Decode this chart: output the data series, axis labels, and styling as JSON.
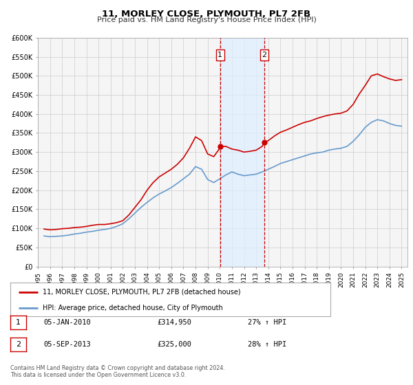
{
  "title": "11, MORLEY CLOSE, PLYMOUTH, PL7 2FB",
  "subtitle": "Price paid vs. HM Land Registry's House Price Index (HPI)",
  "ylim": [
    0,
    600000
  ],
  "yticks": [
    0,
    50000,
    100000,
    150000,
    200000,
    250000,
    300000,
    350000,
    400000,
    450000,
    500000,
    550000,
    600000
  ],
  "ytick_labels": [
    "£0",
    "£50K",
    "£100K",
    "£150K",
    "£200K",
    "£250K",
    "£300K",
    "£350K",
    "£400K",
    "£450K",
    "£500K",
    "£550K",
    "£600K"
  ],
  "xlim_start": 1995.0,
  "xlim_end": 2025.5,
  "red_line_color": "#cc0000",
  "blue_line_color": "#6699cc",
  "transaction1": {
    "label": "1",
    "date": 2010.03,
    "price": 314950,
    "pct": "27%",
    "date_str": "05-JAN-2010",
    "price_str": "£314,950"
  },
  "transaction2": {
    "label": "2",
    "date": 2013.67,
    "price": 325000,
    "pct": "28%",
    "date_str": "05-SEP-2013",
    "price_str": "£325,000"
  },
  "legend_line1": "11, MORLEY CLOSE, PLYMOUTH, PL7 2FB (detached house)",
  "legend_line2": "HPI: Average price, detached house, City of Plymouth",
  "footer1": "Contains HM Land Registry data © Crown copyright and database right 2024.",
  "footer2": "This data is licensed under the Open Government Licence v3.0.",
  "background_color": "#ffffff",
  "plot_bg_color": "#f5f5f5",
  "grid_color": "#cccccc",
  "span_color": "#ddeeff",
  "hpi_red_data": [
    [
      1995.5,
      98000
    ],
    [
      1996.0,
      96000
    ],
    [
      1996.5,
      97000
    ],
    [
      1997.0,
      99000
    ],
    [
      1997.5,
      100000
    ],
    [
      1998.0,
      102000
    ],
    [
      1998.5,
      103000
    ],
    [
      1999.0,
      105000
    ],
    [
      1999.5,
      108000
    ],
    [
      2000.0,
      110000
    ],
    [
      2000.5,
      110000
    ],
    [
      2001.0,
      112000
    ],
    [
      2001.5,
      115000
    ],
    [
      2002.0,
      120000
    ],
    [
      2002.5,
      135000
    ],
    [
      2003.0,
      155000
    ],
    [
      2003.5,
      175000
    ],
    [
      2004.0,
      200000
    ],
    [
      2004.5,
      220000
    ],
    [
      2005.0,
      235000
    ],
    [
      2005.5,
      245000
    ],
    [
      2006.0,
      255000
    ],
    [
      2006.5,
      268000
    ],
    [
      2007.0,
      285000
    ],
    [
      2007.5,
      310000
    ],
    [
      2008.0,
      340000
    ],
    [
      2008.5,
      330000
    ],
    [
      2009.0,
      295000
    ],
    [
      2009.5,
      288000
    ],
    [
      2010.0,
      310000
    ],
    [
      2010.03,
      314950
    ],
    [
      2010.5,
      315000
    ],
    [
      2011.0,
      308000
    ],
    [
      2011.5,
      305000
    ],
    [
      2012.0,
      300000
    ],
    [
      2012.5,
      302000
    ],
    [
      2013.0,
      305000
    ],
    [
      2013.5,
      315000
    ],
    [
      2013.67,
      325000
    ],
    [
      2014.0,
      330000
    ],
    [
      2014.5,
      342000
    ],
    [
      2015.0,
      352000
    ],
    [
      2015.5,
      358000
    ],
    [
      2016.0,
      365000
    ],
    [
      2016.5,
      372000
    ],
    [
      2017.0,
      378000
    ],
    [
      2017.5,
      382000
    ],
    [
      2018.0,
      388000
    ],
    [
      2018.5,
      393000
    ],
    [
      2019.0,
      397000
    ],
    [
      2019.5,
      400000
    ],
    [
      2020.0,
      402000
    ],
    [
      2020.5,
      408000
    ],
    [
      2021.0,
      425000
    ],
    [
      2021.5,
      452000
    ],
    [
      2022.0,
      475000
    ],
    [
      2022.5,
      500000
    ],
    [
      2023.0,
      505000
    ],
    [
      2023.5,
      498000
    ],
    [
      2024.0,
      492000
    ],
    [
      2024.5,
      488000
    ],
    [
      2025.0,
      490000
    ]
  ],
  "hpi_blue_data": [
    [
      1995.5,
      80000
    ],
    [
      1996.0,
      78000
    ],
    [
      1996.5,
      79000
    ],
    [
      1997.0,
      80000
    ],
    [
      1997.5,
      82000
    ],
    [
      1998.0,
      85000
    ],
    [
      1998.5,
      87000
    ],
    [
      1999.0,
      90000
    ],
    [
      1999.5,
      92000
    ],
    [
      2000.0,
      95000
    ],
    [
      2000.5,
      97000
    ],
    [
      2001.0,
      100000
    ],
    [
      2001.5,
      105000
    ],
    [
      2002.0,
      112000
    ],
    [
      2002.5,
      125000
    ],
    [
      2003.0,
      140000
    ],
    [
      2003.5,
      155000
    ],
    [
      2004.0,
      168000
    ],
    [
      2004.5,
      180000
    ],
    [
      2005.0,
      190000
    ],
    [
      2005.5,
      198000
    ],
    [
      2006.0,
      207000
    ],
    [
      2006.5,
      218000
    ],
    [
      2007.0,
      230000
    ],
    [
      2007.5,
      242000
    ],
    [
      2008.0,
      262000
    ],
    [
      2008.5,
      255000
    ],
    [
      2009.0,
      228000
    ],
    [
      2009.5,
      220000
    ],
    [
      2010.0,
      230000
    ],
    [
      2010.5,
      240000
    ],
    [
      2011.0,
      248000
    ],
    [
      2011.5,
      242000
    ],
    [
      2012.0,
      238000
    ],
    [
      2012.5,
      240000
    ],
    [
      2013.0,
      242000
    ],
    [
      2013.5,
      248000
    ],
    [
      2014.0,
      255000
    ],
    [
      2014.5,
      262000
    ],
    [
      2015.0,
      270000
    ],
    [
      2015.5,
      275000
    ],
    [
      2016.0,
      280000
    ],
    [
      2016.5,
      285000
    ],
    [
      2017.0,
      290000
    ],
    [
      2017.5,
      295000
    ],
    [
      2018.0,
      298000
    ],
    [
      2018.5,
      300000
    ],
    [
      2019.0,
      305000
    ],
    [
      2019.5,
      308000
    ],
    [
      2020.0,
      310000
    ],
    [
      2020.5,
      315000
    ],
    [
      2021.0,
      328000
    ],
    [
      2021.5,
      345000
    ],
    [
      2022.0,
      365000
    ],
    [
      2022.5,
      378000
    ],
    [
      2023.0,
      385000
    ],
    [
      2023.5,
      382000
    ],
    [
      2024.0,
      375000
    ],
    [
      2024.5,
      370000
    ],
    [
      2025.0,
      368000
    ]
  ]
}
